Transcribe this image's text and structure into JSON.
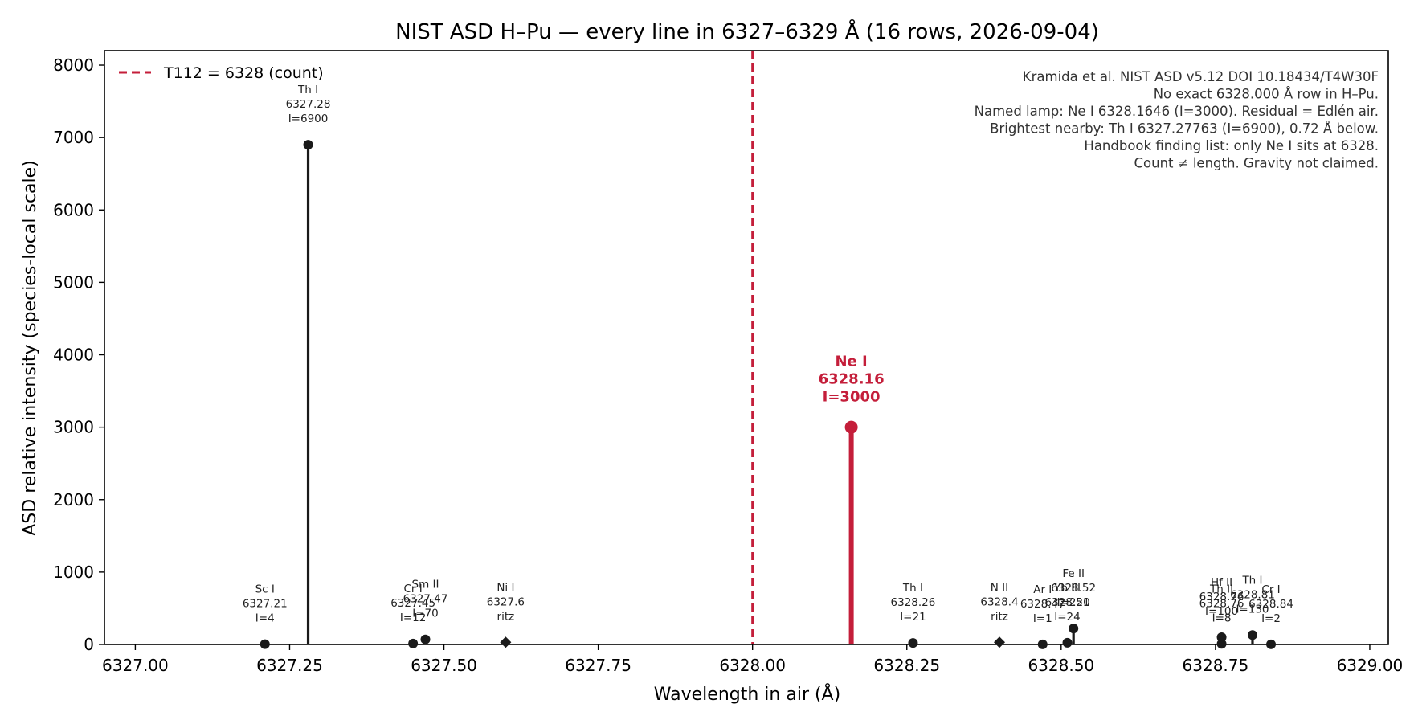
{
  "chart_data": {
    "type": "stem",
    "title": "NIST ASD H–Pu — every line in 6327–6329 Å (16 rows, 2026-09-04)",
    "xlabel": "Wavelength in air (Å)",
    "ylabel": "ASD relative intensity (species-local scale)",
    "xlim": [
      6326.95,
      6329.03
    ],
    "ylim": [
      0,
      8200
    ],
    "xticks": [
      6327.0,
      6327.25,
      6327.5,
      6327.75,
      6328.0,
      6328.25,
      6328.5,
      6328.75,
      6329.0
    ],
    "xtick_labels": [
      "6327.00",
      "6327.25",
      "6327.50",
      "6327.75",
      "6328.00",
      "6328.25",
      "6328.50",
      "6328.75",
      "6329.00"
    ],
    "yticks": [
      0,
      1000,
      2000,
      3000,
      4000,
      5000,
      6000,
      7000,
      8000
    ],
    "ytick_labels": [
      "0",
      "1000",
      "2000",
      "3000",
      "4000",
      "5000",
      "6000",
      "7000",
      "8000"
    ],
    "grid": false,
    "legend_position": "top-left",
    "legend": {
      "label": "T112 = 6328 (count)",
      "color": "#c41e3a",
      "style": "dashed"
    },
    "reference_line": {
      "x": 6328.0
    },
    "highlight": {
      "species": "Ne I",
      "x": 6328.16,
      "y": 3000,
      "wavelength_text": "6328.16",
      "intensity_text": "I=3000",
      "color": "#c41e3a"
    },
    "lines": [
      {
        "x": 6327.21,
        "y": 4,
        "marker": "circle",
        "label": [
          "Sc I",
          "6327.21",
          "I=4"
        ]
      },
      {
        "x": 6327.28,
        "y": 6900,
        "marker": "circle",
        "label": [
          "Th I",
          "6327.28",
          "I=6900"
        ]
      },
      {
        "x": 6327.45,
        "y": 12,
        "marker": "circle",
        "label": [
          "Cr I",
          "6327.45",
          "I=12"
        ]
      },
      {
        "x": 6327.47,
        "y": 70,
        "marker": "circle",
        "label": [
          "Sm II",
          "6327.47",
          "I=70"
        ]
      },
      {
        "x": 6327.6,
        "y": 30,
        "marker": "diamond",
        "label": [
          "Ni I",
          "6327.6",
          "ritz"
        ]
      },
      {
        "x": 6328.26,
        "y": 21,
        "marker": "circle",
        "label": [
          "Th I",
          "6328.26",
          "I=21"
        ]
      },
      {
        "x": 6328.4,
        "y": 30,
        "marker": "diamond",
        "label": [
          "N II",
          "6328.4",
          "ritz"
        ]
      },
      {
        "x": 6328.47,
        "y": 1,
        "marker": "circle",
        "label": [
          "Ar I",
          "6328.47",
          "I=1"
        ]
      },
      {
        "x": 6328.51,
        "y": 24,
        "marker": "circle",
        "label": [
          "Yb III",
          "6328.51",
          "I=24"
        ]
      },
      {
        "x": 6328.52,
        "y": 220,
        "marker": "circle",
        "label": [
          "Fe II",
          "6328.52",
          "I=220"
        ]
      },
      {
        "x": 6328.76,
        "y": 8,
        "marker": "circle",
        "label": [
          "Th II",
          "6328.76",
          "I=8"
        ]
      },
      {
        "x": 6328.76,
        "y": 100,
        "marker": "circle",
        "label": [
          "Hf II",
          "6328.76",
          "I=100"
        ]
      },
      {
        "x": 6328.81,
        "y": 130,
        "marker": "circle",
        "label": [
          "Th I",
          "6328.81",
          "I=130"
        ]
      },
      {
        "x": 6328.84,
        "y": 2,
        "marker": "circle",
        "label": [
          "Cr I",
          "6328.84",
          "I=2"
        ]
      }
    ],
    "annotations": [
      "Kramida et al. NIST ASD v5.12  DOI 10.18434/T4W30F",
      "No exact 6328.000 Å row in H–Pu.",
      "Named lamp: Ne I 6328.1646 (I=3000). Residual = Edlén air.",
      "Brightest nearby: Th I 6327.27763 (I=6900), 0.72 Å below.",
      "Handbook finding list: only Ne I sits at 6328.",
      "Count ≠ length. Gravity not claimed."
    ]
  }
}
